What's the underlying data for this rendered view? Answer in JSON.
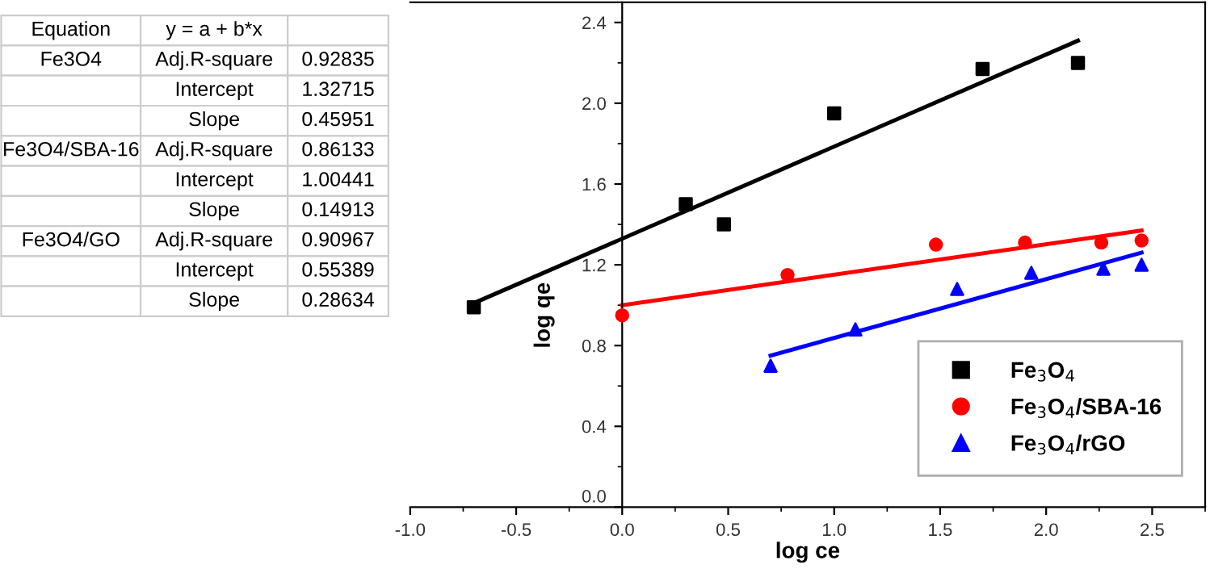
{
  "chart_data": {
    "type": "scatter",
    "xlabel": "log ce",
    "ylabel": "log qe",
    "xlim": [
      -1.0,
      2.75
    ],
    "ylim": [
      0,
      2.5
    ],
    "xticks": [
      {
        "value": -1,
        "label": "-1.0"
      },
      -0.5,
      {
        "value": 0,
        "label": "0.0"
      },
      0.5,
      {
        "value": 1,
        "label": "1.0"
      },
      1.5,
      {
        "value": 2,
        "label": "2.0"
      },
      2.5
    ],
    "yticks": [
      {
        "value": 0,
        "label": "0.0"
      },
      0.4,
      0.8,
      1.2,
      1.6,
      {
        "value": 2,
        "label": "2.0"
      },
      2.4
    ],
    "grid": false,
    "legend": "bottom right",
    "series": [
      {
        "name": "Fe$_{3}$O$_{4}$",
        "marker": "square",
        "color": "#000000",
        "x": [
          -0.7,
          0.3,
          0.48,
          1.0,
          1.7,
          2.15
        ],
        "values": [
          0.99,
          1.5,
          1.4,
          1.95,
          2.17,
          2.2
        ]
      },
      {
        "name": "Fe$_{3}$O$_{4}$/SBA-16",
        "marker": "circle",
        "color": "#ff0000",
        "x": [
          0.0,
          0.78,
          1.48,
          1.9,
          2.26,
          2.45
        ],
        "values": [
          0.95,
          1.15,
          1.3,
          1.31,
          1.31,
          1.32
        ]
      },
      {
        "name": "Fe$_{3}$O$_{4}$/rGO",
        "marker": "triangle",
        "color": "#0000ff",
        "x": [
          0.7,
          1.1,
          1.58,
          1.93,
          2.27,
          2.45
        ],
        "values": [
          0.7,
          0.88,
          1.08,
          1.16,
          1.18,
          1.2
        ]
      },
      {
        "type": "line",
        "marker": "none",
        "color": "#000000",
        "x": [
          -0.7,
          2.15
        ],
        "values": [
          1.01,
          2.31
        ]
      },
      {
        "type": "line",
        "marker": "none",
        "color": "#ff0000",
        "x": [
          0.0,
          2.45
        ],
        "values": [
          1.0,
          1.37
        ]
      },
      {
        "type": "line",
        "marker": "none",
        "color": "#0000ff",
        "x": [
          0.7,
          2.45
        ],
        "values": [
          0.75,
          1.26
        ]
      }
    ],
    "annotations": [
      "Equation\ty = a + b*x\t",
      "Fe3O4\tAdj.R-square\t0.92835",
      "\tIntercept\t1.32715",
      "\tSlope\t0.45951",
      "Fe3O4/SBA-16\tAdj.R-square\t0.86133",
      "\tIntercept\t1.00441",
      "\tSlope\t0.14913",
      "Fe3O4/GO\tAdj.R-square\t0.90967",
      "\tIntercept\t0.55389",
      "\tSlope\t0.28634"
    ]
  }
}
